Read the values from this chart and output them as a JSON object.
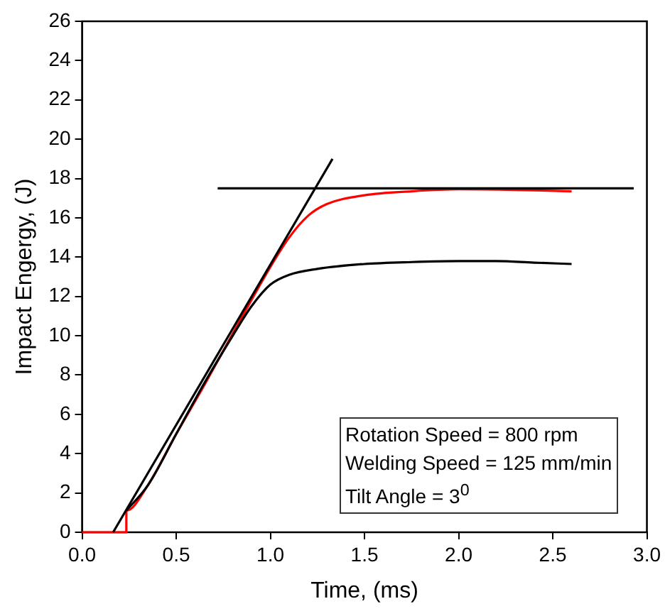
{
  "chart_data": {
    "type": "line",
    "xlabel": "Time, (ms)",
    "ylabel": "Impact Engergy, (J)",
    "xlim": [
      0,
      3
    ],
    "ylim": [
      0,
      26
    ],
    "xticks": [
      {
        "value": 0,
        "label": "0.0"
      },
      {
        "value": 0.5,
        "label": "0.5"
      },
      {
        "value": 1,
        "label": "1.0"
      },
      {
        "value": 1.5,
        "label": "1.5"
      },
      {
        "value": 2,
        "label": "2.0"
      },
      {
        "value": 2.5,
        "label": "2.5"
      },
      {
        "value": 3,
        "label": "3.0"
      }
    ],
    "yticks": [
      0,
      2,
      4,
      6,
      8,
      10,
      12,
      14,
      16,
      18,
      20,
      22,
      24,
      26
    ],
    "grid": false,
    "legend": false,
    "marker": "none",
    "line_style": "solid",
    "series": [
      {
        "color": "#000000",
        "x": [
          0.165,
          1.33
        ],
        "values": [
          0,
          19.0
        ]
      },
      {
        "color": "#000000",
        "x": [
          0.72,
          2.93
        ],
        "values": [
          17.5,
          17.5
        ]
      },
      {
        "color": "#000000",
        "x": [
          0.235,
          0.35,
          0.5,
          0.65,
          0.8,
          0.9,
          1.0,
          1.1,
          1.25,
          1.5,
          1.75,
          2.0,
          2.2,
          2.4,
          2.6
        ],
        "values": [
          1.1,
          2.4,
          5.0,
          7.6,
          10.0,
          11.5,
          12.6,
          13.1,
          13.4,
          13.65,
          13.75,
          13.8,
          13.8,
          13.72,
          13.65
        ]
      },
      {
        "color": "#ff0000",
        "x": [
          0,
          0.235,
          0.235,
          0.35,
          0.5,
          0.65,
          0.8,
          1.0,
          1.1,
          1.2,
          1.3,
          1.5,
          1.75,
          2.0,
          2.3,
          2.6
        ],
        "values": [
          0,
          0,
          1.1,
          2.4,
          5.0,
          7.5,
          10.1,
          13.5,
          15.0,
          16.1,
          16.7,
          17.15,
          17.35,
          17.45,
          17.42,
          17.35
        ]
      }
    ],
    "annotations": [
      "Rotation Speed = 800 rpm",
      "Welding Speed = 125 mm/min",
      "Tilt Angle = 3$^{0}$"
    ]
  }
}
